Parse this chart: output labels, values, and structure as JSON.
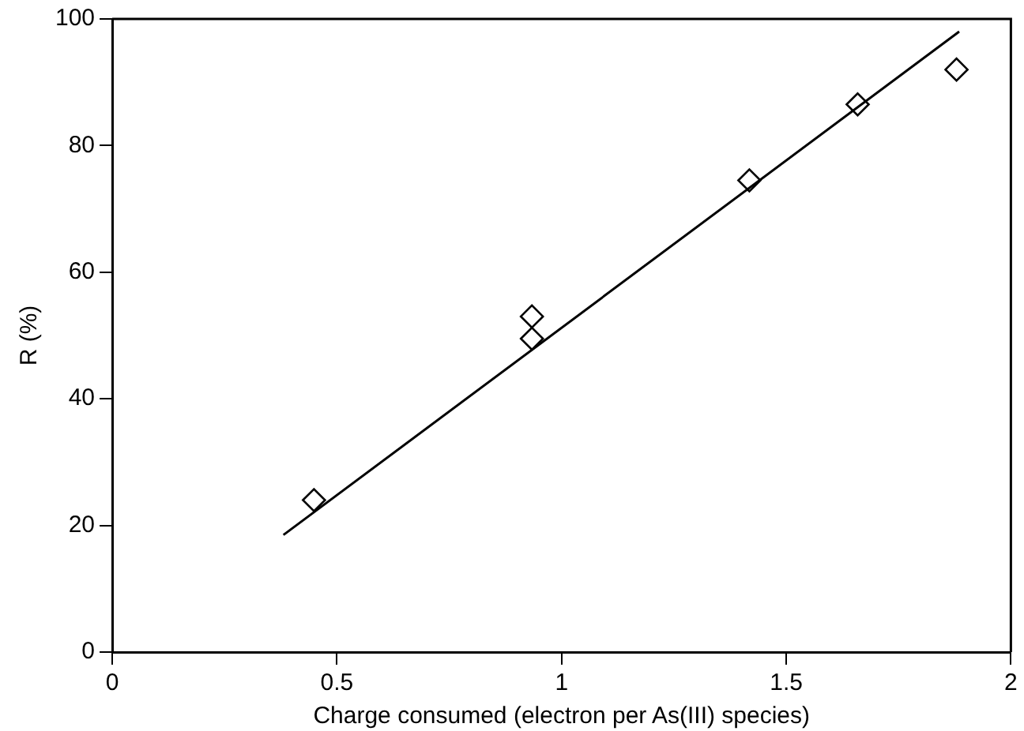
{
  "chart_data": {
    "type": "scatter",
    "xlabel": "Charge consumed (electron per As(III) species)",
    "ylabel": "R (%)",
    "xlim": [
      0,
      2
    ],
    "xticks": [
      0,
      0.5,
      1,
      1.5,
      2
    ],
    "ylim": [
      0,
      100
    ],
    "yticks": [
      0,
      20,
      40,
      60,
      80,
      100
    ],
    "grid": false,
    "legend": false,
    "marker": "diamond",
    "series": [
      {
        "color": "#000000",
        "x": [
          0.449,
          0.934,
          0.934,
          1.418,
          1.659,
          1.879
        ],
        "values": [
          24,
          53,
          49.5,
          74.5,
          86.5,
          92
        ]
      },
      {
        "type": "line",
        "color": "#000000",
        "x": [
          0.381,
          1.885
        ],
        "values": [
          18.5,
          98
        ],
        "marker": "none",
        "line_style": "solid"
      }
    ]
  }
}
